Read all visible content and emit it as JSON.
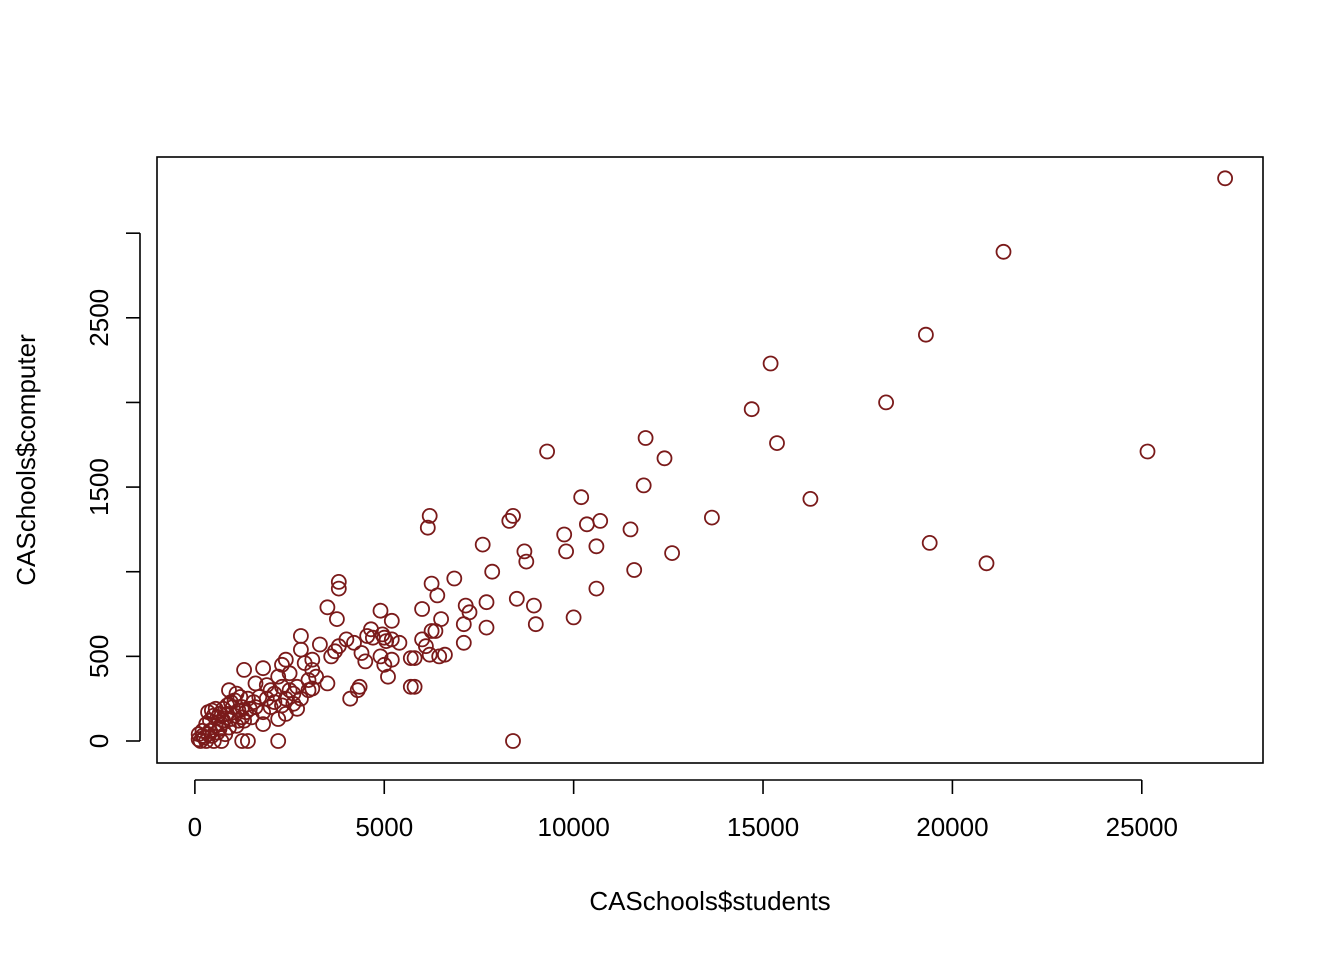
{
  "chart_data": {
    "type": "scatter",
    "title": "",
    "xlabel": "CASchools$students",
    "ylabel": "CASchools$computer",
    "xlim": [
      -1000,
      28200
    ],
    "ylim": [
      -130,
      3450
    ],
    "x_ticks": [
      0,
      5000,
      10000,
      15000,
      20000,
      25000
    ],
    "y_ticks": [
      0,
      500,
      1000,
      1500,
      2000,
      2500,
      3000
    ],
    "y_tick_labels": [
      "0",
      "500",
      "",
      "1500",
      "",
      "2500",
      ""
    ],
    "grid": false,
    "legend": "none",
    "point_color": "#7A1A1A",
    "points": [
      [
        27200,
        3324
      ],
      [
        21350,
        2890
      ],
      [
        19300,
        2400
      ],
      [
        15200,
        2230
      ],
      [
        14700,
        1960
      ],
      [
        18250,
        2000
      ],
      [
        25150,
        1710
      ],
      [
        15370,
        1760
      ],
      [
        11900,
        1790
      ],
      [
        12400,
        1670
      ],
      [
        9300,
        1710
      ],
      [
        10200,
        1440
      ],
      [
        16250,
        1430
      ],
      [
        11850,
        1510
      ],
      [
        13650,
        1320
      ],
      [
        10700,
        1300
      ],
      [
        10350,
        1280
      ],
      [
        11500,
        1250
      ],
      [
        9750,
        1220
      ],
      [
        10600,
        1150
      ],
      [
        9800,
        1120
      ],
      [
        8700,
        1120
      ],
      [
        8750,
        1060
      ],
      [
        12600,
        1110
      ],
      [
        11600,
        1010
      ],
      [
        8400,
        1330
      ],
      [
        8300,
        1300
      ],
      [
        7600,
        1160
      ],
      [
        7850,
        1000
      ],
      [
        19400,
        1170
      ],
      [
        20900,
        1050
      ],
      [
        10600,
        900
      ],
      [
        8500,
        840
      ],
      [
        8950,
        800
      ],
      [
        10000,
        730
      ],
      [
        9000,
        690
      ],
      [
        6200,
        1330
      ],
      [
        6150,
        1260
      ],
      [
        6850,
        960
      ],
      [
        6250,
        930
      ],
      [
        6400,
        860
      ],
      [
        7700,
        820
      ],
      [
        7150,
        800
      ],
      [
        7250,
        760
      ],
      [
        7100,
        690
      ],
      [
        7700,
        670
      ],
      [
        6000,
        780
      ],
      [
        6500,
        720
      ],
      [
        6250,
        650
      ],
      [
        6350,
        650
      ],
      [
        6000,
        600
      ],
      [
        6100,
        560
      ],
      [
        6200,
        510
      ],
      [
        6450,
        500
      ],
      [
        6600,
        510
      ],
      [
        7100,
        580
      ],
      [
        3800,
        940
      ],
      [
        3800,
        900
      ],
      [
        3500,
        790
      ],
      [
        3750,
        720
      ],
      [
        4900,
        770
      ],
      [
        5200,
        710
      ],
      [
        4650,
        660
      ],
      [
        4550,
        620
      ],
      [
        4700,
        610
      ],
      [
        4950,
        630
      ],
      [
        5000,
        610
      ],
      [
        5050,
        590
      ],
      [
        5200,
        600
      ],
      [
        5400,
        580
      ],
      [
        4200,
        580
      ],
      [
        4000,
        600
      ],
      [
        3700,
        530
      ],
      [
        3600,
        500
      ],
      [
        3300,
        570
      ],
      [
        3800,
        560
      ],
      [
        4400,
        520
      ],
      [
        4500,
        470
      ],
      [
        5200,
        480
      ],
      [
        4900,
        500
      ],
      [
        5000,
        450
      ],
      [
        5100,
        380
      ],
      [
        5700,
        320
      ],
      [
        5800,
        320
      ],
      [
        5700,
        490
      ],
      [
        5800,
        490
      ],
      [
        4350,
        320
      ],
      [
        4300,
        300
      ],
      [
        4100,
        250
      ],
      [
        3500,
        340
      ],
      [
        3200,
        380
      ],
      [
        3100,
        420
      ],
      [
        3000,
        360
      ],
      [
        2800,
        620
      ],
      [
        2800,
        540
      ],
      [
        3100,
        480
      ],
      [
        2900,
        460
      ],
      [
        2400,
        480
      ],
      [
        2300,
        450
      ],
      [
        2500,
        400
      ],
      [
        2200,
        380
      ],
      [
        2300,
        320
      ],
      [
        2500,
        300
      ],
      [
        2100,
        280
      ],
      [
        1800,
        430
      ],
      [
        1300,
        420
      ],
      [
        1600,
        340
      ],
      [
        1900,
        330
      ],
      [
        2000,
        300
      ],
      [
        2400,
        250
      ],
      [
        2600,
        220
      ],
      [
        2800,
        250
      ],
      [
        3000,
        300
      ],
      [
        2700,
        190
      ],
      [
        2400,
        160
      ],
      [
        2200,
        130
      ],
      [
        2000,
        200
      ],
      [
        1800,
        170
      ],
      [
        1600,
        200
      ],
      [
        1400,
        250
      ],
      [
        1200,
        260
      ],
      [
        1100,
        280
      ],
      [
        900,
        300
      ],
      [
        1000,
        200
      ],
      [
        1500,
        140
      ],
      [
        1300,
        120
      ],
      [
        1100,
        90
      ],
      [
        1800,
        100
      ],
      [
        2200,
        0
      ],
      [
        8400,
        0
      ],
      [
        1400,
        0
      ],
      [
        1250,
        0
      ],
      [
        700,
        0
      ],
      [
        500,
        0
      ],
      [
        300,
        0
      ],
      [
        150,
        0
      ],
      [
        100,
        10
      ],
      [
        250,
        20
      ],
      [
        350,
        40
      ],
      [
        450,
        30
      ],
      [
        600,
        50
      ],
      [
        800,
        40
      ],
      [
        900,
        80
      ],
      [
        700,
        100
      ],
      [
        600,
        140
      ],
      [
        500,
        150
      ],
      [
        400,
        120
      ],
      [
        300,
        100
      ],
      [
        200,
        60
      ],
      [
        200,
        30
      ],
      [
        100,
        40
      ],
      [
        400,
        60
      ],
      [
        550,
        90
      ],
      [
        650,
        70
      ],
      [
        750,
        120
      ],
      [
        850,
        160
      ],
      [
        950,
        130
      ],
      [
        1050,
        150
      ],
      [
        1150,
        180
      ],
      [
        1250,
        200
      ],
      [
        1350,
        170
      ],
      [
        1450,
        190
      ],
      [
        1550,
        230
      ],
      [
        1700,
        260
      ],
      [
        1900,
        250
      ],
      [
        2100,
        230
      ],
      [
        2300,
        210
      ],
      [
        2600,
        280
      ],
      [
        2700,
        320
      ],
      [
        3100,
        310
      ],
      [
        350,
        170
      ],
      [
        450,
        180
      ],
      [
        550,
        190
      ],
      [
        650,
        160
      ],
      [
        750,
        190
      ],
      [
        850,
        210
      ],
      [
        950,
        230
      ],
      [
        1050,
        240
      ],
      [
        1150,
        120
      ],
      [
        1250,
        140
      ]
    ]
  }
}
